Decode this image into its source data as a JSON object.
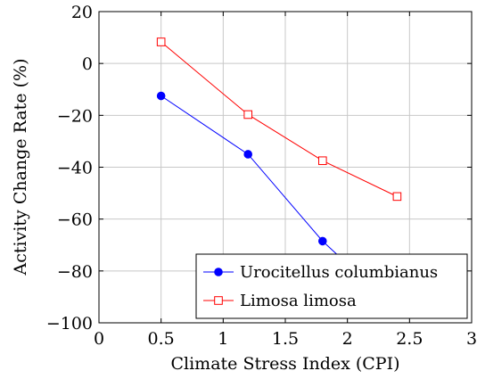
{
  "chart_data": {
    "type": "line",
    "title": "",
    "xlabel": "Climate Stress Index (CPI)",
    "ylabel": "Activity Change Rate (%)",
    "xlim": [
      0,
      3
    ],
    "ylim": [
      -100,
      20
    ],
    "xticks": [
      0,
      0.5,
      1,
      1.5,
      2,
      2.5,
      3
    ],
    "yticks": [
      -100,
      -80,
      -60,
      -40,
      -20,
      0,
      20
    ],
    "xtick_labels": [
      "0",
      "0.5",
      "1",
      "1.5",
      "2",
      "2.5",
      "3"
    ],
    "ytick_labels": [
      "−100",
      "−80",
      "−60",
      "−40",
      "−20",
      "0",
      "20"
    ],
    "grid": true,
    "legend_position": "bottom-right",
    "series": [
      {
        "name": "Urocitellus columbianus",
        "color": "#0000ff",
        "marker": "filled-circle",
        "x": [
          0.5,
          1.2,
          1.8,
          2.4
        ],
        "y": [
          -12.5,
          -35,
          -68.5,
          -95
        ]
      },
      {
        "name": "Limosa limosa",
        "color": "#ff0000",
        "marker": "open-square",
        "x": [
          0.5,
          1.2,
          1.8,
          2.4
        ],
        "y": [
          8.3,
          -19.7,
          -37.5,
          -51.3
        ]
      }
    ]
  }
}
